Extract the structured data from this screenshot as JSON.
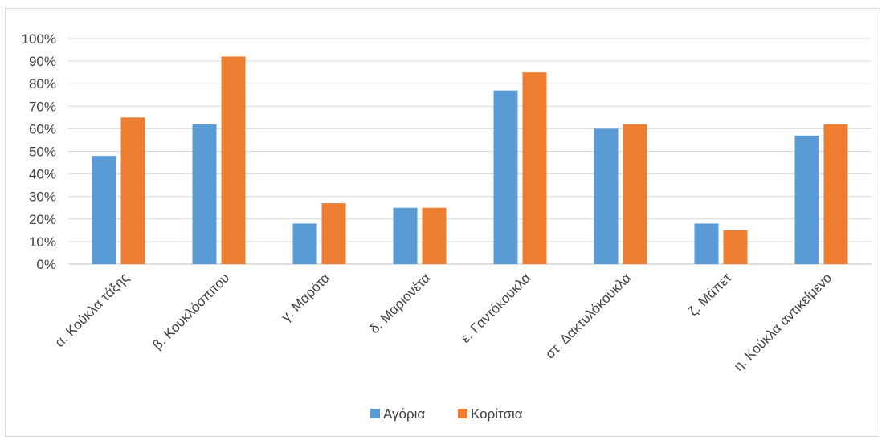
{
  "chart_data": {
    "type": "bar",
    "title": "",
    "xlabel": "",
    "ylabel": "",
    "categories": [
      "α. Κούκλα τάξης",
      "β. Κουκλόσπιτου",
      "γ. Μαρότα",
      "δ. Μαριονέτα",
      "ε. Γαντόκουκλα",
      "στ. Δακτυλόκουκλα",
      "ζ. Μάπετ",
      "η. Κούκλα αντικείμενο"
    ],
    "series": [
      {
        "name": "Αγόρια",
        "color": "#5b9bd5",
        "values": [
          48,
          62,
          18,
          25,
          77,
          60,
          18,
          57
        ]
      },
      {
        "name": "Κορίτσια",
        "color": "#ed7d31",
        "values": [
          65,
          92,
          27,
          25,
          85,
          62,
          15,
          62
        ]
      }
    ],
    "ylim": [
      0,
      100
    ],
    "yticks": [
      "0%",
      "10%",
      "20%",
      "30%",
      "40%",
      "50%",
      "60%",
      "70%",
      "80%",
      "90%",
      "100%"
    ],
    "grid": true,
    "legend_position": "bottom"
  }
}
